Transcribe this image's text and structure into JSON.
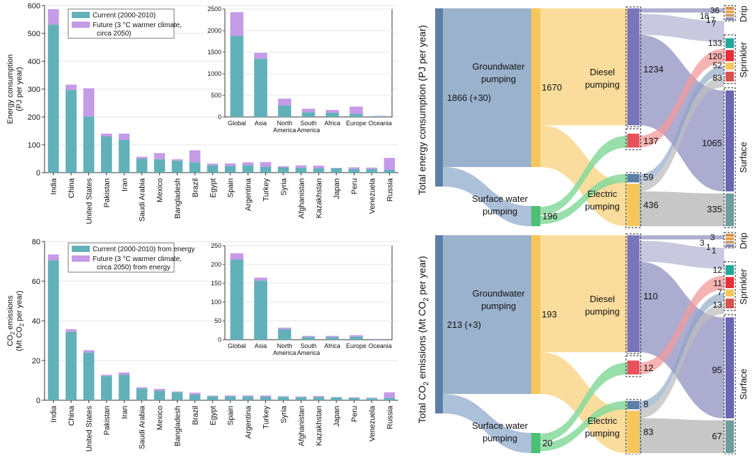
{
  "colors": {
    "current": "#62b1ba",
    "future": "#c59be8",
    "groundwater": "#8aa4c4",
    "groundwater_bar": "#5d7ea6",
    "surface_water": "#9db5d2",
    "diesel": "#f7c65a",
    "electric": "#86d99c",
    "electric_bar": "#4cbf74",
    "drip": "#9a9ac4",
    "sprinkler_flow": "#f39a9a",
    "surface_flow": "#7f7fb8",
    "gray_flow": "#bdbdbd",
    "surface_end_diesel": "#6a66b3",
    "surface_end_electric": "#6d9e9c",
    "sprinkler_colors": [
      "#23a99b",
      "#e8303a",
      "#f7c65a",
      "#d8534e"
    ],
    "drip_colors": [
      "#d9914a",
      "#e8a14b",
      "#c9a06a",
      "#8b8bb8"
    ]
  },
  "chart_data": [
    {
      "type": "bar",
      "stacked": true,
      "title": "",
      "ylabel": "Energy consumption (PJ per year)",
      "ylim": [
        0,
        600
      ],
      "yticks": [
        0,
        100,
        200,
        300,
        400,
        500,
        600
      ],
      "categories": [
        "India",
        "China",
        "United States",
        "Pakistan",
        "Iran",
        "Saudi Arabia",
        "Mexico",
        "Bangladesh",
        "Brazil",
        "Egypt",
        "Spain",
        "Argentina",
        "Turkey",
        "Syria",
        "Afghanistan",
        "Kazakhstan",
        "Japan",
        "Peru",
        "Venezuela",
        "Russia"
      ],
      "series": [
        {
          "name": "Current (2000-2010)",
          "values": [
            532,
            297,
            202,
            130,
            118,
            50,
            48,
            43,
            37,
            26,
            24,
            27,
            21,
            19,
            18,
            15,
            16,
            13,
            13,
            10
          ]
        },
        {
          "name": "Future (3 °C warmer climate, circa 2050)",
          "values": [
            55,
            19,
            101,
            10,
            22,
            7,
            22,
            5,
            43,
            6,
            9,
            10,
            17,
            4,
            8,
            10,
            1,
            6,
            5,
            43
          ]
        }
      ],
      "legend_position": "top-center",
      "inset": {
        "categories": [
          "Global",
          "Asia",
          "North America",
          "South America",
          "Africa",
          "Europe",
          "Oceania"
        ],
        "ylim": [
          0,
          2500
        ],
        "yticks": [
          0,
          500,
          1000,
          1500,
          2000,
          2500
        ],
        "series": [
          {
            "name": "Current (2000-2010)",
            "values": [
              1880,
              1350,
              265,
              110,
              100,
              75,
              15
            ]
          },
          {
            "name": "Future (3 °C warmer climate, circa 2050)",
            "values": [
              550,
              135,
              160,
              80,
              60,
              165,
              10
            ]
          }
        ]
      }
    },
    {
      "type": "bar",
      "stacked": true,
      "title": "",
      "ylabel": "CO2 emissions (Mt CO2 per year)",
      "ylim": [
        0,
        80
      ],
      "yticks": [
        0,
        20,
        40,
        60,
        80
      ],
      "categories": [
        "India",
        "China",
        "United States",
        "Pakistan",
        "Iran",
        "Saudi Arabia",
        "Mexico",
        "Bangladesh",
        "Brazil",
        "Egypt",
        "Spain",
        "Argentina",
        "Turkey",
        "Syria",
        "Afghanistan",
        "Kazakhstan",
        "Japan",
        "Peru",
        "Venezuela",
        "Russia"
      ],
      "series": [
        {
          "name": "Current (2000-2010) from energy",
          "values": [
            70.5,
            34.5,
            24.0,
            12.2,
            12.8,
            5.9,
            4.8,
            4.0,
            2.8,
            2.0,
            1.9,
            1.9,
            1.8,
            1.7,
            1.5,
            1.6,
            1.5,
            1.1,
            1.0,
            1.2
          ]
        },
        {
          "name": "Future (3 °C warmer climate, circa 2050) from energy",
          "values": [
            3.0,
            1.3,
            1.2,
            0.6,
            1.2,
            0.6,
            0.9,
            0.4,
            1.0,
            0.3,
            0.5,
            0.5,
            0.6,
            0.3,
            0.4,
            0.5,
            0.1,
            0.4,
            0.3,
            2.8
          ]
        }
      ],
      "legend_position": "top-center",
      "inset": {
        "categories": [
          "Global",
          "Asia",
          "North America",
          "South America",
          "Africa",
          "Europe",
          "Oceania"
        ],
        "ylim": [
          0,
          250
        ],
        "yticks": [
          0,
          50,
          100,
          150,
          200,
          250
        ],
        "series": [
          {
            "name": "Current (2000-2010) from energy",
            "values": [
              213,
              157,
              28,
              7,
              7,
              8,
              1
            ]
          },
          {
            "name": "Future (3 °C warmer climate, circa 2050) from energy",
            "values": [
              17,
              8,
              4,
              3,
              3,
              4,
              1
            ]
          }
        ]
      }
    },
    {
      "type": "sankey",
      "ylabel": "Total energy consumption (PJ per year)",
      "total_label": "1866 (+30)",
      "nodes": {
        "groundwater": {
          "label": "Groundwater pumping",
          "value": 1670
        },
        "surface_water": {
          "label": "Surface water pumping",
          "value": 196
        },
        "diesel": {
          "label": "Diesel pumping",
          "value": 1234
        },
        "electric": {
          "label": "Electric pumping",
          "value": 436
        }
      },
      "mid_values": {
        "diesel_main": "1234",
        "diesel_sprinkler": "137",
        "electric_sprinkler": "59",
        "electric_main": "436"
      },
      "ends": {
        "drip": {
          "label": "Drip",
          "values": [
            "36",
            "18",
            "17",
            "7"
          ]
        },
        "sprinkler": {
          "label": "Sprinkler",
          "values": [
            "133",
            "120",
            "52",
            "83"
          ]
        },
        "surface": {
          "label": "Surface",
          "values": [
            "1065",
            "335"
          ]
        }
      }
    },
    {
      "type": "sankey",
      "ylabel": "Total CO2 emissions (Mt CO2 per year)",
      "total_label": "213 (+3)",
      "nodes": {
        "groundwater": {
          "label": "Groundwater pumping",
          "value": 193
        },
        "surface_water": {
          "label": "Surface water pumping",
          "value": 20
        },
        "diesel": {
          "label": "Diesel pumping",
          "value": 110
        },
        "electric": {
          "label": "Electric pumping",
          "value": 83
        }
      },
      "mid_values": {
        "diesel_main": "110",
        "diesel_sprinkler": "12",
        "electric_sprinkler": "8",
        "electric_main": "83"
      },
      "ends": {
        "drip": {
          "label": "Drip",
          "values": [
            "3",
            "3",
            "1",
            "1"
          ]
        },
        "sprinkler": {
          "label": "Sprinkler",
          "values": [
            "12",
            "11",
            "7",
            "13"
          ]
        },
        "surface": {
          "label": "Surface",
          "values": [
            "95",
            "67"
          ]
        }
      }
    }
  ]
}
